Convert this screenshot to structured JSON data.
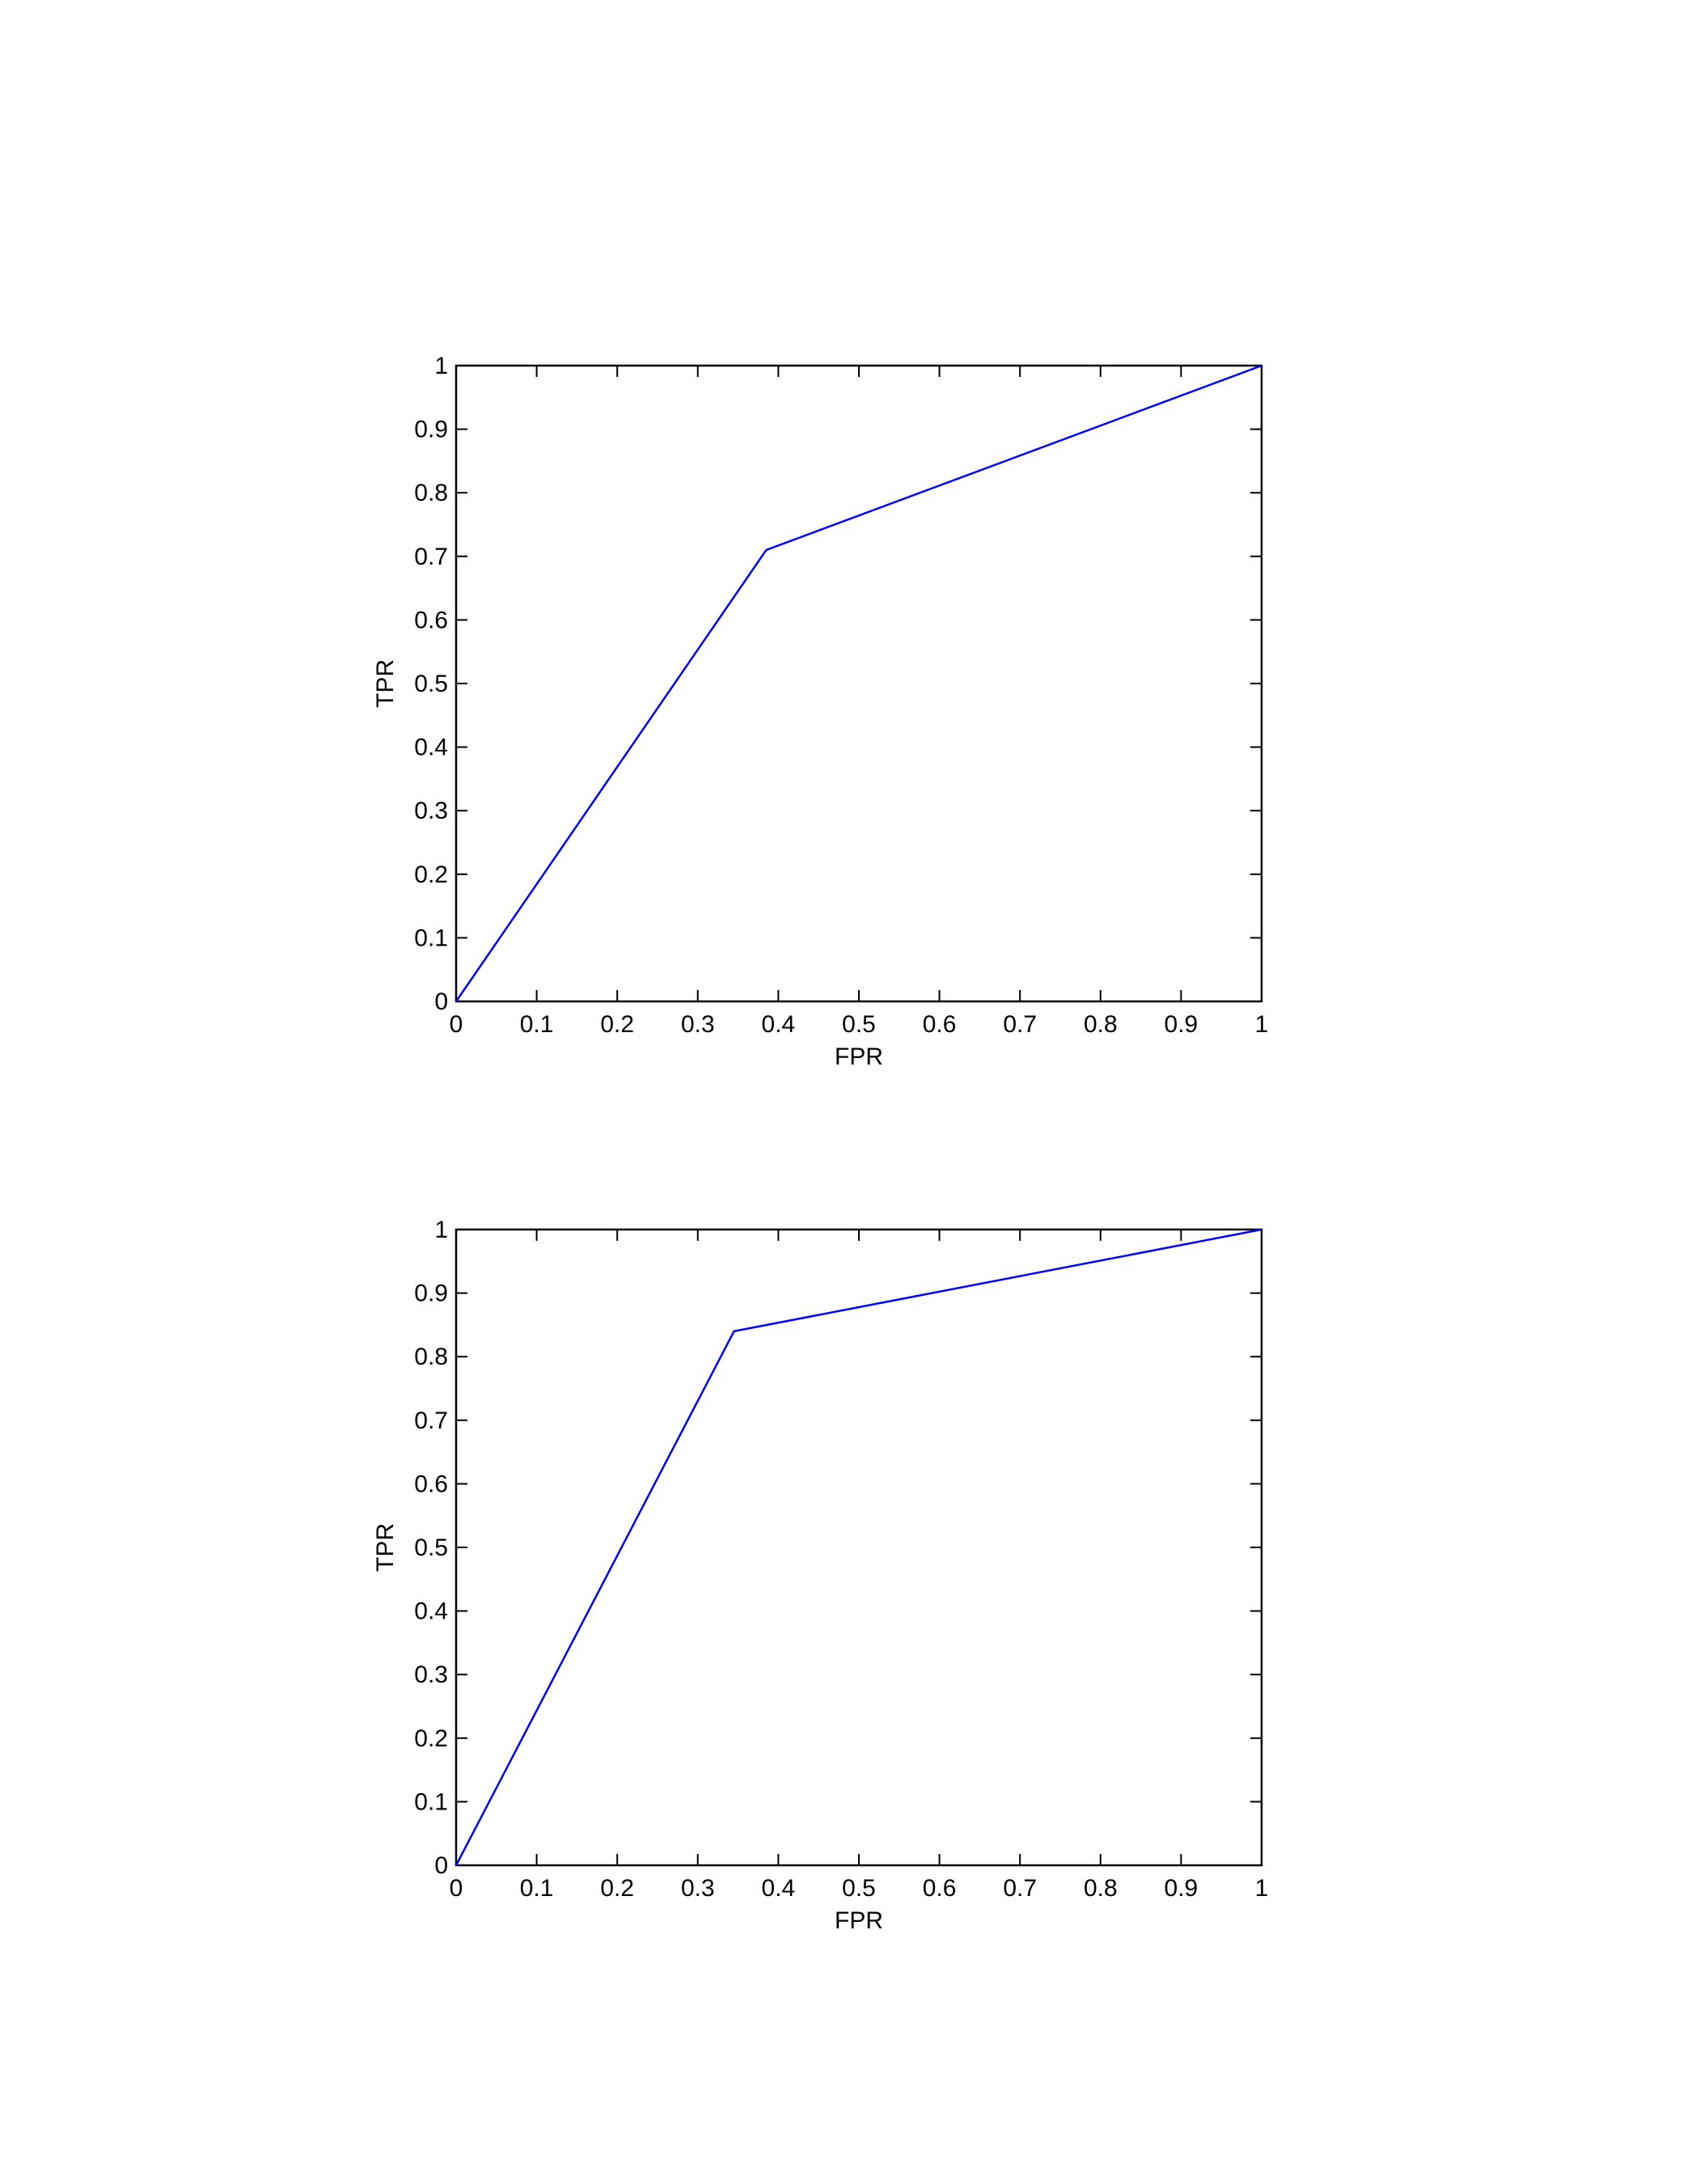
{
  "chart_data": [
    {
      "type": "line",
      "xlabel": "FPR",
      "ylabel": "TPR",
      "xlim": [
        0,
        1
      ],
      "ylim": [
        0,
        1
      ],
      "xticks": [
        "0",
        "0.1",
        "0.2",
        "0.3",
        "0.4",
        "0.5",
        "0.6",
        "0.7",
        "0.8",
        "0.9",
        "1"
      ],
      "yticks": [
        "0",
        "0.1",
        "0.2",
        "0.3",
        "0.4",
        "0.5",
        "0.6",
        "0.7",
        "0.8",
        "0.9",
        "1"
      ],
      "grid": false,
      "series": [
        {
          "x": [
            0,
            0.385,
            1
          ],
          "y": [
            0,
            0.71,
            1
          ],
          "color": "#0000ff"
        }
      ]
    },
    {
      "type": "line",
      "xlabel": "FPR",
      "ylabel": "TPR",
      "xlim": [
        0,
        1
      ],
      "ylim": [
        0,
        1
      ],
      "xticks": [
        "0",
        "0.1",
        "0.2",
        "0.3",
        "0.4",
        "0.5",
        "0.6",
        "0.7",
        "0.8",
        "0.9",
        "1"
      ],
      "yticks": [
        "0",
        "0.1",
        "0.2",
        "0.3",
        "0.4",
        "0.5",
        "0.6",
        "0.7",
        "0.8",
        "0.9",
        "1"
      ],
      "grid": false,
      "series": [
        {
          "x": [
            0,
            0.345,
            1
          ],
          "y": [
            0,
            0.84,
            1
          ],
          "color": "#0000ff"
        }
      ]
    }
  ]
}
